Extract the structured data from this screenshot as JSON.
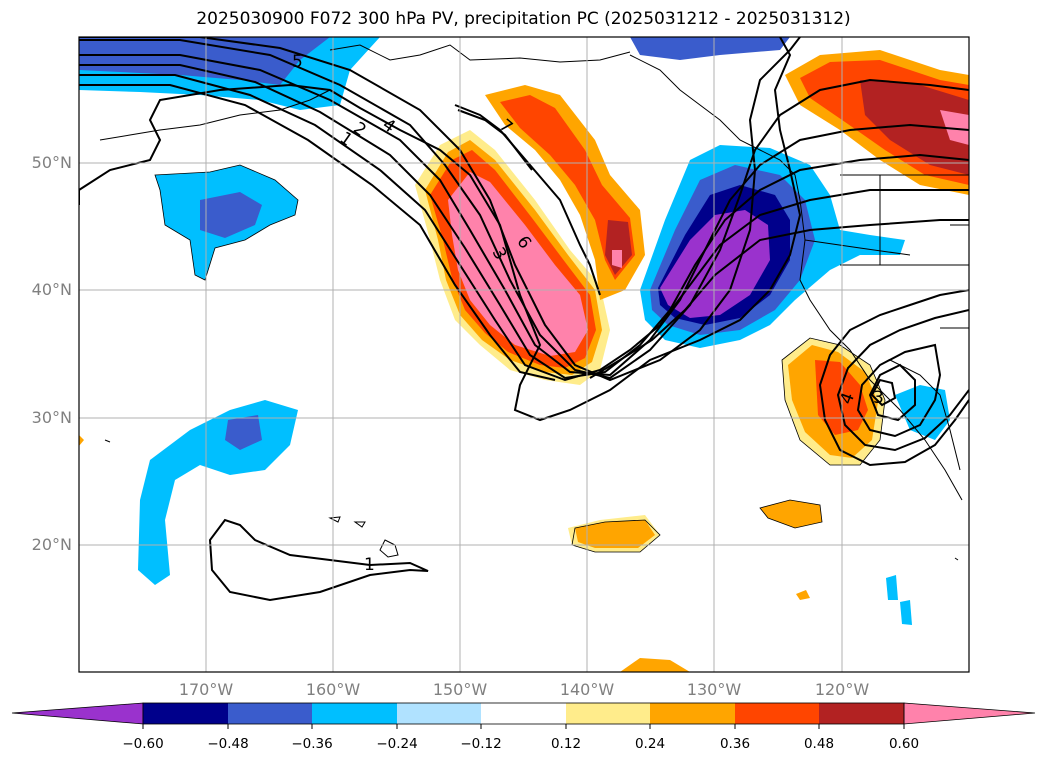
{
  "title": "2025030900 F072 300 hPa PV, precipitation PC (2025031212 - 2025031312)",
  "lat_labels": [
    "50°N",
    "40°N",
    "30°N",
    "20°N"
  ],
  "lon_labels": [
    "170°W",
    "160°W",
    "150°W",
    "140°W",
    "130°W",
    "120°W"
  ],
  "contour_labels": [
    "5",
    "4",
    "2",
    "1",
    "7",
    "3",
    "6",
    "1",
    "4",
    "3"
  ],
  "colorbar": {
    "ticks": [
      "−0.60",
      "−0.48",
      "−0.36",
      "−0.24",
      "−0.12",
      "0.12",
      "0.24",
      "0.36",
      "0.48",
      "0.60"
    ],
    "colors": [
      "#9a32cd",
      "#00008b",
      "#3a5ccc",
      "#00bfff",
      "#b0e2ff",
      "#ffffff",
      "#ffec8b",
      "#ffa500",
      "#ff4500",
      "#b22222",
      "#ff82ab"
    ],
    "extend": "both"
  }
}
